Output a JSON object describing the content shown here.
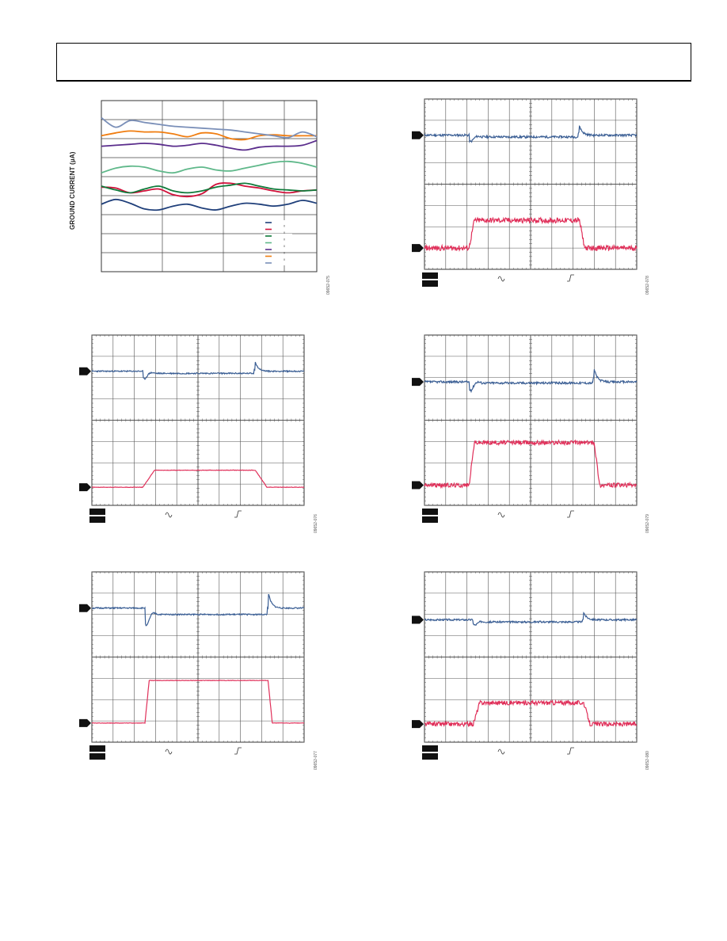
{
  "page": {
    "header_text": ""
  },
  "chart_data": [
    {
      "id": "ground-current-plot",
      "type": "line",
      "ylabel": "GROUND CURRENT (µA)",
      "fig_code": "09652-075",
      "grid": true,
      "grid_cols": 3.3,
      "grid_rows": 9,
      "ylim": [
        0,
        9
      ],
      "legend": {
        "placement": "bottom-right",
        "colors": [
          "#1f3f7a",
          "#d0103a",
          "#0f7a3a",
          "#5fb88a",
          "#5a2d8c",
          "#f07d10",
          "#7a8fb8"
        ]
      },
      "series": [
        {
          "color": "#1f3f7a",
          "values": [
            3.55,
            3.8,
            3.6,
            3.3,
            3.25,
            3.45,
            3.55,
            3.35,
            3.25,
            3.45,
            3.6,
            3.55,
            3.45,
            3.55,
            3.75,
            3.6
          ]
        },
        {
          "color": "#d0103a",
          "values": [
            4.45,
            4.4,
            4.15,
            4.25,
            4.35,
            4.05,
            3.95,
            4.1,
            4.6,
            4.65,
            4.5,
            4.4,
            4.25,
            4.15,
            4.25,
            4.3
          ]
        },
        {
          "color": "#0f7a3a",
          "values": [
            4.5,
            4.3,
            4.15,
            4.35,
            4.5,
            4.25,
            4.15,
            4.25,
            4.45,
            4.55,
            4.65,
            4.5,
            4.35,
            4.3,
            4.25,
            4.3
          ]
        },
        {
          "color": "#5fb88a",
          "values": [
            5.2,
            5.45,
            5.55,
            5.5,
            5.3,
            5.2,
            5.4,
            5.5,
            5.35,
            5.3,
            5.45,
            5.6,
            5.75,
            5.8,
            5.7,
            5.5
          ]
        },
        {
          "color": "#5a2d8c",
          "values": [
            6.6,
            6.65,
            6.7,
            6.75,
            6.7,
            6.6,
            6.65,
            6.75,
            6.65,
            6.5,
            6.4,
            6.55,
            6.6,
            6.6,
            6.65,
            6.9
          ]
        },
        {
          "color": "#f07d10",
          "values": [
            7.15,
            7.3,
            7.4,
            7.35,
            7.35,
            7.25,
            7.1,
            7.3,
            7.25,
            7.0,
            6.95,
            7.15,
            7.2,
            7.15,
            7.15,
            7.15
          ]
        },
        {
          "color": "#7a8fb8",
          "values": [
            8.1,
            7.6,
            7.95,
            7.85,
            7.75,
            7.65,
            7.6,
            7.55,
            7.5,
            7.45,
            7.35,
            7.25,
            7.15,
            7.05,
            7.35,
            7.1
          ]
        }
      ]
    },
    {
      "id": "scope-1",
      "type": "line",
      "fig_code": "09652-078",
      "grid": true,
      "grid_cols": 10,
      "grid_rows": 8,
      "ylim": [
        0,
        8
      ],
      "channels": [
        {
          "color": "#3a5e94",
          "baseline": 6.3,
          "step": -0.08,
          "rise_at": 2.1,
          "fall_at": 7.3,
          "neg_spike": -0.3,
          "pos_spike": 0.45,
          "noise": 0.05
        },
        {
          "color": "#e0305a",
          "baseline": 1.0,
          "step": 1.3,
          "rise_at": 2.1,
          "fall_at": 7.3,
          "rise_width": 0.25,
          "noise": 0.12
        }
      ]
    },
    {
      "id": "scope-2",
      "type": "line",
      "fig_code": "09652-076",
      "grid": true,
      "grid_cols": 10,
      "grid_rows": 8,
      "ylim": [
        0,
        8
      ],
      "channels": [
        {
          "color": "#3a5e94",
          "baseline": 6.3,
          "step": -0.1,
          "rise_at": 2.4,
          "fall_at": 7.7,
          "neg_spike": -0.35,
          "pos_spike": 0.45,
          "noise": 0.03
        },
        {
          "color": "#e0305a",
          "baseline": 0.85,
          "step": 0.8,
          "rise_at": 2.4,
          "fall_at": 7.7,
          "rise_width": 0.55,
          "noise": 0.01
        }
      ]
    },
    {
      "id": "scope-3",
      "type": "line",
      "fig_code": "09652-079",
      "grid": true,
      "grid_cols": 10,
      "grid_rows": 8,
      "ylim": [
        0,
        8
      ],
      "channels": [
        {
          "color": "#3a5e94",
          "baseline": 5.8,
          "step": -0.05,
          "rise_at": 2.1,
          "fall_at": 8.0,
          "neg_spike": -0.5,
          "pos_spike": 0.6,
          "noise": 0.05
        },
        {
          "color": "#e0305a",
          "baseline": 0.95,
          "step": 2.0,
          "rise_at": 2.1,
          "fall_at": 8.0,
          "rise_width": 0.25,
          "noise": 0.1
        }
      ]
    },
    {
      "id": "scope-4",
      "type": "line",
      "fig_code": "09652-077",
      "grid": true,
      "grid_cols": 10,
      "grid_rows": 8,
      "ylim": [
        0,
        8
      ],
      "channels": [
        {
          "color": "#3a5e94",
          "baseline": 6.3,
          "step": -0.3,
          "rise_at": 2.5,
          "fall_at": 8.3,
          "neg_spike": -0.7,
          "pos_spike": 0.8,
          "noise": 0.03
        },
        {
          "color": "#e0305a",
          "baseline": 0.9,
          "step": 2.0,
          "rise_at": 2.5,
          "fall_at": 8.3,
          "rise_width": 0.2,
          "noise": 0.01
        }
      ]
    },
    {
      "id": "scope-5",
      "type": "line",
      "fig_code": "09652-080",
      "grid": true,
      "grid_cols": 10,
      "grid_rows": 8,
      "ylim": [
        0,
        8
      ],
      "channels": [
        {
          "color": "#3a5e94",
          "baseline": 5.75,
          "step": -0.1,
          "rise_at": 2.3,
          "fall_at": 7.5,
          "neg_spike": -0.2,
          "pos_spike": 0.35,
          "noise": 0.04
        },
        {
          "color": "#e0305a",
          "baseline": 0.85,
          "step": 1.0,
          "rise_at": 2.3,
          "fall_at": 7.5,
          "rise_width": 0.3,
          "noise": 0.1
        }
      ]
    }
  ]
}
